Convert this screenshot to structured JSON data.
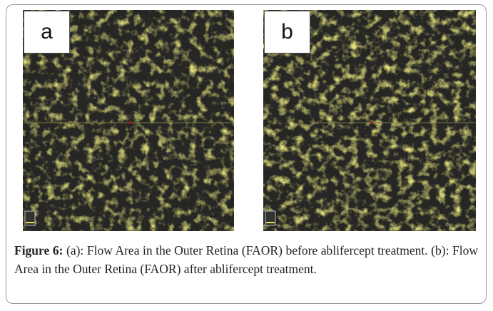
{
  "panels": [
    {
      "label": "a"
    },
    {
      "label": "b"
    }
  ],
  "caption": {
    "label": "Figure 6:",
    "text": "(a): Flow Area in the Outer Retina (FAOR) before ablifercept treatment. (b): Flow Area in the Outer Retina (FAOR) after ablifercept treatment."
  }
}
